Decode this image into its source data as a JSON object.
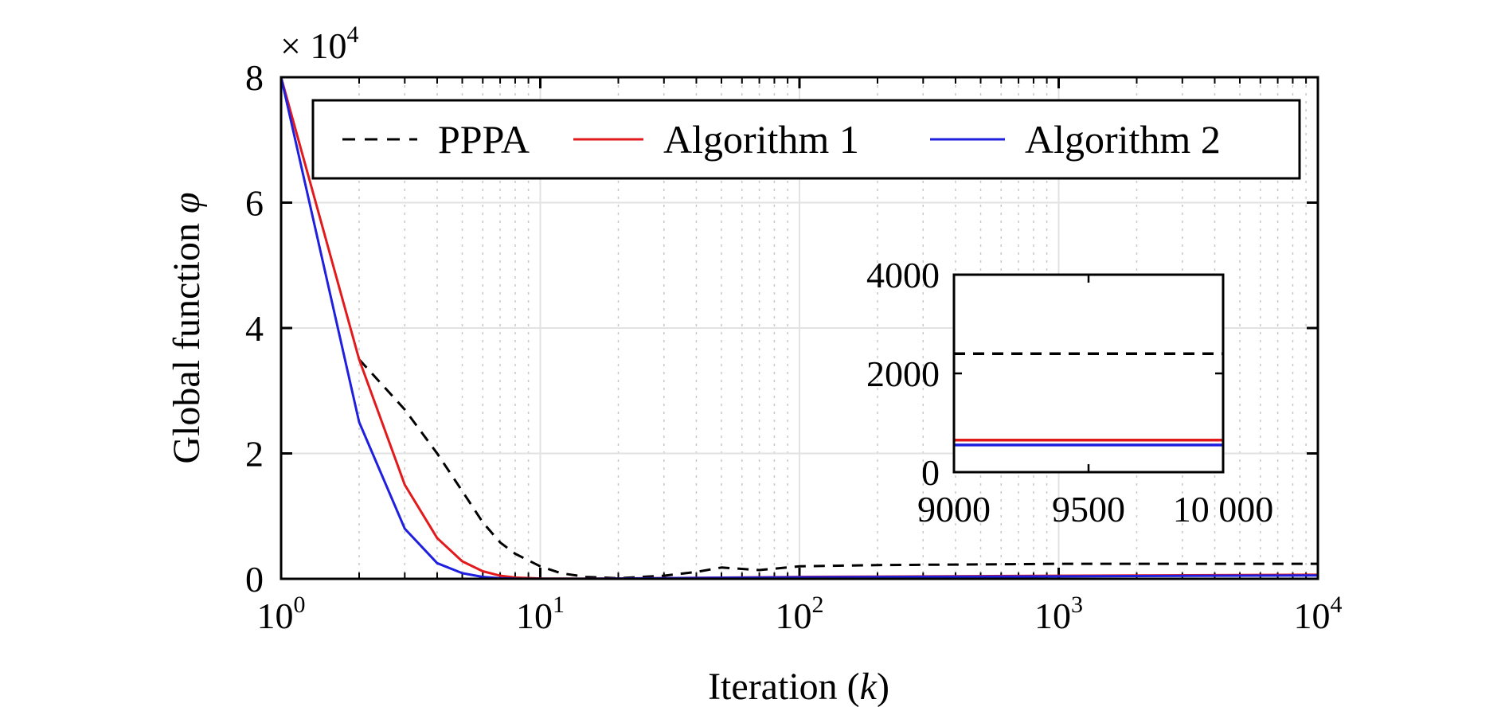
{
  "chart_data": [
    {
      "type": "line",
      "title": "",
      "xlabel": "Iteration (k)",
      "xlabel_prefix": "Iteration (",
      "xlabel_var": "k",
      "xlabel_suffix": ")",
      "ylabel": "Global function φ",
      "ylabel_text": "Global function ",
      "ylabel_var": "φ",
      "y_multiplier": "× 10",
      "y_multiplier_exp": "4",
      "xscale": "log",
      "xlim": [
        1,
        10000
      ],
      "ylim": [
        0,
        80000
      ],
      "xticks": [
        {
          "base": "10",
          "exp": "0",
          "value": 1
        },
        {
          "base": "10",
          "exp": "1",
          "value": 10
        },
        {
          "base": "10",
          "exp": "2",
          "value": 100
        },
        {
          "base": "10",
          "exp": "3",
          "value": 1000
        },
        {
          "base": "10",
          "exp": "4",
          "value": 10000
        }
      ],
      "yticks": [
        {
          "label": "0",
          "value": 0
        },
        {
          "label": "2",
          "value": 20000
        },
        {
          "label": "4",
          "value": 40000
        },
        {
          "label": "6",
          "value": 60000
        },
        {
          "label": "8",
          "value": 80000
        }
      ],
      "grid": true,
      "legend_placement": "top",
      "series": [
        {
          "name": "PPPA",
          "color": "#000000",
          "style": "dashed",
          "x": [
            2,
            3,
            4,
            5,
            6,
            7,
            8,
            10,
            12,
            15,
            20,
            30,
            40,
            50,
            70,
            100,
            200,
            500,
            1000,
            5000,
            10000
          ],
          "y": [
            35000,
            27000,
            20000,
            14000,
            9000,
            5800,
            4000,
            2000,
            900,
            300,
            100,
            500,
            1100,
            1800,
            1400,
            2000,
            2200,
            2300,
            2400,
            2400,
            2400
          ]
        },
        {
          "name": "Algorithm 1",
          "color": "#e31a1c",
          "style": "solid",
          "x": [
            1,
            2,
            3,
            4,
            5,
            6,
            7,
            8,
            10,
            15,
            20,
            100,
            1000,
            10000
          ],
          "y": [
            80000,
            35000,
            15000,
            6500,
            2800,
            1200,
            500,
            200,
            50,
            10,
            50,
            300,
            500,
            650
          ]
        },
        {
          "name": "Algorithm 2",
          "color": "#1f1fe0",
          "style": "solid",
          "x": [
            1,
            2,
            3,
            4,
            5,
            6,
            7,
            8,
            10,
            15,
            20,
            100,
            1000,
            10000
          ],
          "y": [
            80000,
            25000,
            8000,
            2500,
            900,
            300,
            100,
            30,
            10,
            10,
            50,
            250,
            400,
            550
          ]
        }
      ]
    },
    {
      "type": "line",
      "title": "",
      "role": "inset",
      "xlim": [
        9000,
        10000
      ],
      "ylim": [
        0,
        4000
      ],
      "xticks": [
        {
          "label": "9000",
          "value": 9000
        },
        {
          "label": "9500",
          "value": 9500
        },
        {
          "label": "10 000",
          "value": 10000
        }
      ],
      "yticks": [
        {
          "label": "0",
          "value": 0
        },
        {
          "label": "2000",
          "value": 2000
        },
        {
          "label": "4000",
          "value": 4000
        }
      ],
      "grid": false,
      "series": [
        {
          "name": "PPPA",
          "color": "#000000",
          "style": "dashed",
          "x": [
            9000,
            10000
          ],
          "y": [
            2400,
            2400
          ]
        },
        {
          "name": "Algorithm 1",
          "color": "#e31a1c",
          "style": "solid",
          "x": [
            9000,
            10000
          ],
          "y": [
            650,
            650
          ]
        },
        {
          "name": "Algorithm 2",
          "color": "#1f1fe0",
          "style": "solid",
          "x": [
            9000,
            10000
          ],
          "y": [
            550,
            550
          ]
        }
      ]
    }
  ]
}
